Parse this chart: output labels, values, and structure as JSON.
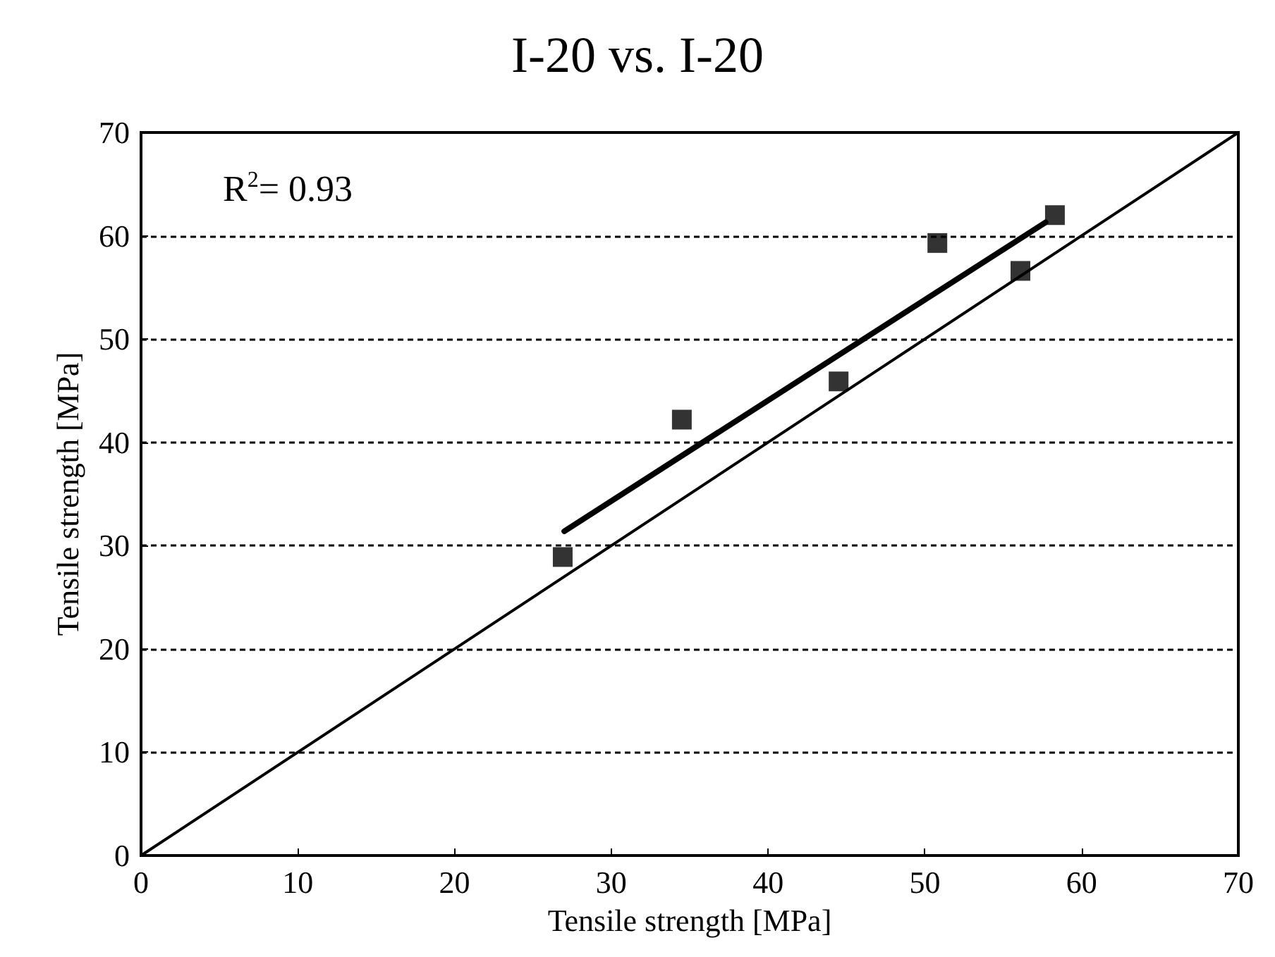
{
  "chart_data": {
    "type": "scatter",
    "title": "I-20 vs. I-20",
    "xlabel": "Tensile strength [MPa]",
    "ylabel": "Tensile strength [MPa]",
    "annotations": [
      "R$^{2}$= 0.93"
    ],
    "series": [
      {
        "color": "#000000",
        "marker": "square",
        "x": [
          26.9,
          34.5,
          44.5,
          50.8,
          56.1,
          58.3
        ],
        "values": [
          28.9,
          42.2,
          45.9,
          59.3,
          56.6,
          62.0
        ]
      },
      {
        "type": "line",
        "color": "#000000",
        "marker": "none",
        "line_style": "solid",
        "x": [
          27,
          57.7
        ],
        "values": [
          31.4,
          61.3
        ]
      },
      {
        "type": "line",
        "color": "#000000",
        "marker": "none",
        "line_style": "solid",
        "x": [
          0,
          70
        ],
        "values": [
          0,
          70
        ]
      }
    ],
    "xlim": [
      0,
      70
    ],
    "ylim": [
      0,
      70
    ],
    "xticks": [
      0,
      10,
      20,
      30,
      40,
      50,
      60,
      70
    ],
    "yticks": [
      0,
      10,
      20,
      30,
      40,
      50,
      60,
      70
    ],
    "grid": "y"
  }
}
